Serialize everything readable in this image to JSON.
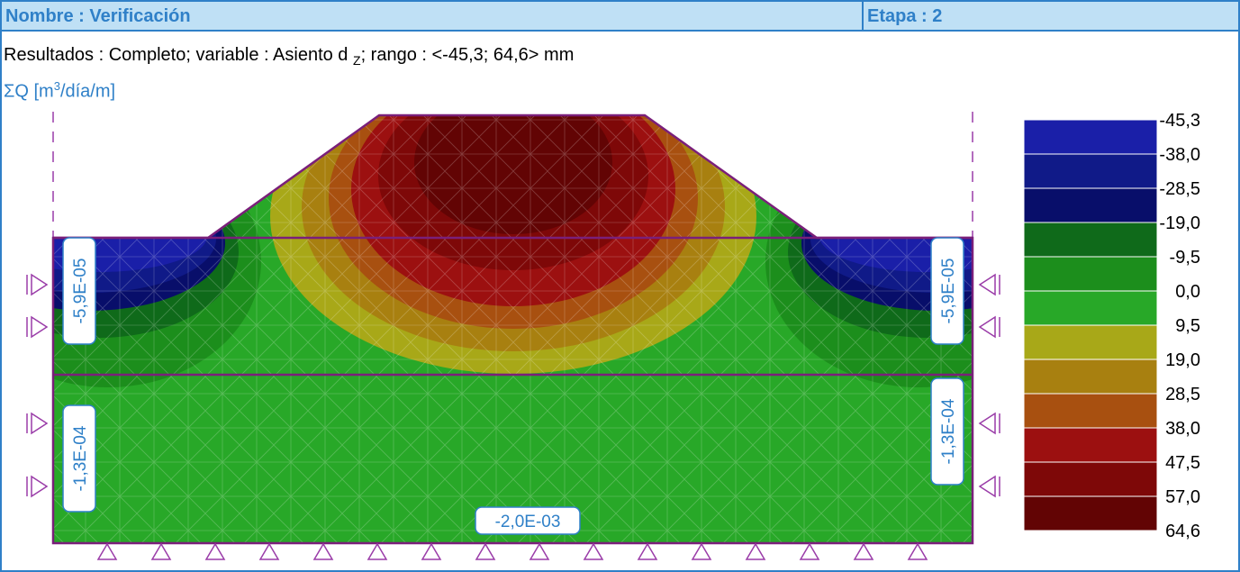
{
  "header": {
    "name": "Nombre : Verificación",
    "stage": "Etapa : 2"
  },
  "results": {
    "prefix": "Resultados : Completo; variable : Asiento d",
    "subscript": "Z",
    "suffix": "; rango : <-45,3; 64,6> mm"
  },
  "flux": {
    "base": "ΣQ [m",
    "sup": "3",
    "tail": "/día/m]"
  },
  "legend": {
    "labels": [
      "-45,3",
      "-38,0",
      "-28,5",
      "-19,0",
      "-9,5",
      "0,0",
      "9,5",
      "19,0",
      "28,5",
      "38,0",
      "47,5",
      "57,0",
      "64,6"
    ],
    "colors": [
      "#1a1fa8",
      "#101a88",
      "#080e6a",
      "#0f6a1a",
      "#1c8e1c",
      "#28a828",
      "#a8a818",
      "#a88010",
      "#a85010",
      "#9c1010",
      "#7e0808",
      "#620404"
    ]
  },
  "flow_labels": {
    "left_upper": "-5,9E-05",
    "right_upper": "-5,9E-05",
    "left_lower": "-1,3E-04",
    "right_lower": "-1,3E-04",
    "bottom": "-2,0E-03"
  },
  "colors": {
    "frame": "#2f80c8",
    "header_bg": "#bfe0f5",
    "boundary": "#7a1f7a",
    "support": "#9a3ca8"
  }
}
